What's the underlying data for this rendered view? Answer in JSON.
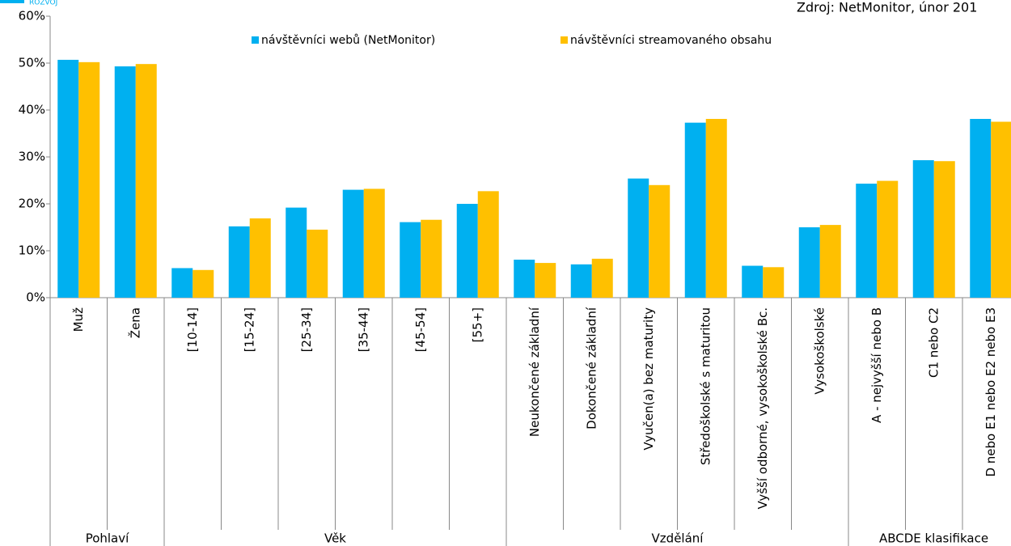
{
  "chart_data": {
    "type": "bar",
    "logo": "ROZVOJ",
    "source": "Zdroj: NetMonitor, únor 201",
    "categories": [
      "Muž",
      "Žena",
      "[10-14]",
      "[15-24]",
      "[25-34]",
      "[35-44]",
      "[45-54]",
      "[55+]",
      "Neukončené základní",
      "Dokončené základní",
      "Vyučen(a) bez maturity",
      "Středoškolské s maturitou",
      "Vyšší odborné, vysokoškolské Bc.",
      "Vysokoškolské",
      "A - nejvyšší nebo B",
      "C1 nebo C2",
      "D nebo E1 nebo E2 nebo E3"
    ],
    "groups": [
      {
        "name": "Pohlaví",
        "count": 2
      },
      {
        "name": "Věk",
        "count": 6
      },
      {
        "name": "Vzdělání",
        "count": 6
      },
      {
        "name": "ABCDE klasifikace",
        "count": 3
      }
    ],
    "series": [
      {
        "name": "návštěvníci webů (NetMonitor)",
        "color": "#00b0f0",
        "values": [
          50.7,
          49.3,
          6.3,
          15.2,
          19.2,
          23.0,
          16.1,
          20.0,
          8.1,
          7.1,
          25.4,
          37.3,
          6.8,
          15.0,
          24.3,
          29.3,
          38.1
        ]
      },
      {
        "name": "návštěvníci streamovaného obsahu",
        "color": "#ffc000",
        "values": [
          50.2,
          49.8,
          5.9,
          16.9,
          14.5,
          23.2,
          16.6,
          22.7,
          7.4,
          8.3,
          24.0,
          38.1,
          6.5,
          15.5,
          24.9,
          29.1,
          37.5
        ]
      }
    ],
    "ylim": [
      0,
      60
    ],
    "yticks": [
      {
        "value": 0,
        "label": "0%"
      },
      {
        "value": 10,
        "label": "10%"
      },
      {
        "value": 20,
        "label": "20%"
      },
      {
        "value": 30,
        "label": "30%"
      },
      {
        "value": 40,
        "label": "40%"
      },
      {
        "value": 50,
        "label": "50%"
      },
      {
        "value": 60,
        "label": "60%"
      }
    ],
    "grid": false,
    "legend": "top"
  }
}
